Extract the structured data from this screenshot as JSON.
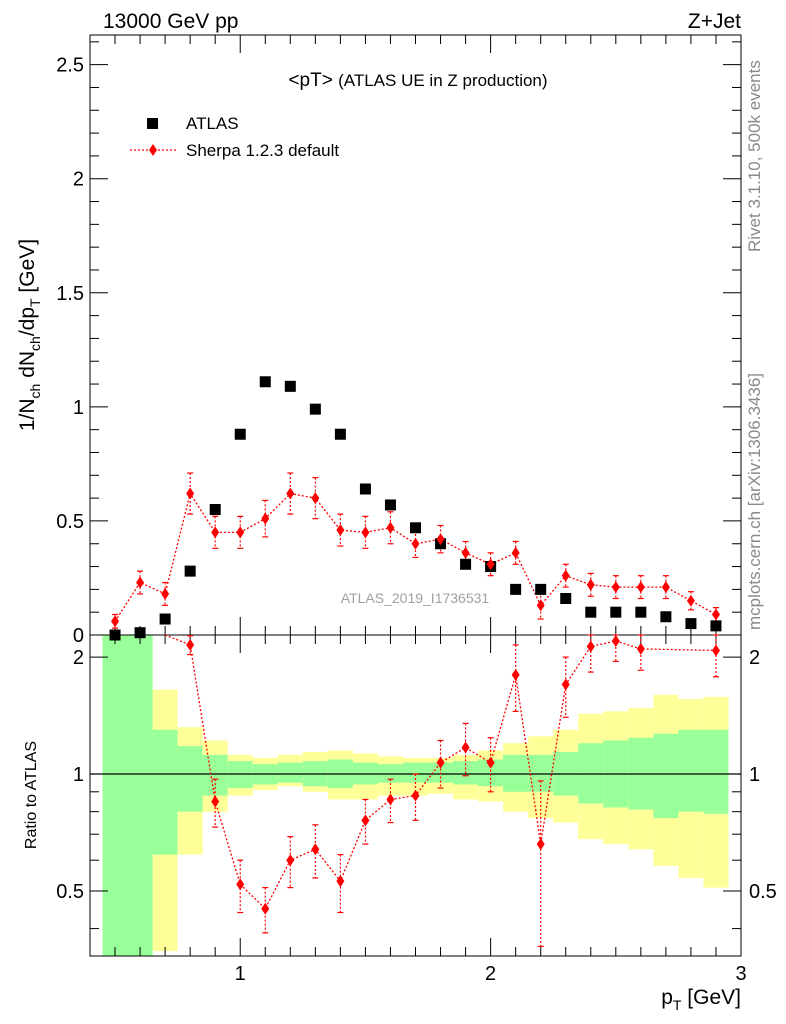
{
  "header": {
    "energy_label": "13000 GeV pp",
    "process_label": "Z+Jet",
    "plot_title_main": "<pT>",
    "plot_title_sub": "(ATLAS UE in Z production)",
    "analysis_id": "ATLAS_2019_I1736531"
  },
  "side": {
    "rivet_label": "Rivet 3.1.10,  500k events",
    "source_label": "mcplots.cern.ch [arXiv:1306.3436]"
  },
  "legend": {
    "data_label": "ATLAS",
    "mc_label": "Sherpa 1.2.3 default"
  },
  "colors": {
    "data": "#000000",
    "mc": "#ff0000",
    "band_inner": "#99ff99",
    "band_outer": "#ffff99"
  },
  "chart_data": [
    {
      "type": "scatter",
      "panel": "main",
      "ylabel_parts": [
        "1/N",
        "ch",
        " dN",
        "ch",
        "/dp",
        "T",
        " [GeV]"
      ],
      "xlim": [
        0.4,
        3.0
      ],
      "ylim": [
        0,
        2.63
      ],
      "yticks": [
        0,
        0.5,
        1,
        1.5,
        2,
        2.5
      ],
      "ytick_labels": [
        "0",
        "0.5",
        "1",
        "1.5",
        "2",
        "2.5"
      ],
      "x": [
        0.5,
        0.6,
        0.7,
        0.8,
        0.9,
        1.0,
        1.1,
        1.2,
        1.3,
        1.4,
        1.5,
        1.6,
        1.7,
        1.8,
        1.9,
        2.0,
        2.1,
        2.2,
        2.3,
        2.4,
        2.5,
        2.6,
        2.7,
        2.8,
        2.9
      ],
      "series": [
        {
          "name": "ATLAS",
          "marker": "square",
          "values": [
            0.0,
            0.01,
            0.07,
            0.28,
            0.55,
            0.88,
            1.11,
            1.09,
            0.99,
            0.88,
            0.64,
            0.57,
            0.47,
            0.4,
            0.31,
            0.3,
            0.2,
            0.2,
            0.16,
            0.1,
            0.1,
            0.1,
            0.08,
            0.05,
            0.04
          ]
        },
        {
          "name": "Sherpa 1.2.3 default",
          "marker": "diamond",
          "values": [
            0.06,
            0.23,
            0.18,
            0.62,
            0.45,
            0.45,
            0.51,
            0.62,
            0.6,
            0.46,
            0.45,
            0.47,
            0.4,
            0.42,
            0.36,
            0.31,
            0.36,
            0.13,
            0.26,
            0.22,
            0.21,
            0.21,
            0.21,
            0.15,
            0.09
          ],
          "errors": [
            0.03,
            0.05,
            0.05,
            0.09,
            0.07,
            0.07,
            0.08,
            0.09,
            0.09,
            0.07,
            0.07,
            0.07,
            0.06,
            0.06,
            0.05,
            0.05,
            0.05,
            0.06,
            0.05,
            0.05,
            0.05,
            0.05,
            0.05,
            0.04,
            0.03
          ]
        }
      ]
    },
    {
      "type": "scatter",
      "panel": "ratio",
      "ylabel": "Ratio to ATLAS",
      "xlabel_parts": [
        "p",
        "T",
        " [GeV]"
      ],
      "xlim": [
        0.4,
        3.0
      ],
      "ylim": [
        0.34,
        2.28
      ],
      "yticks": [
        0.5,
        1,
        2
      ],
      "ytick_labels": [
        "0.5",
        "1",
        "2"
      ],
      "xticks": [
        1,
        2,
        3
      ],
      "xtick_labels": [
        "1",
        "2",
        "3"
      ],
      "reference_line": 1,
      "bands": {
        "edges": [
          0.45,
          0.55,
          0.65,
          0.75,
          0.85,
          0.95,
          1.05,
          1.15,
          1.25,
          1.35,
          1.45,
          1.55,
          1.65,
          1.75,
          1.85,
          1.95,
          2.05,
          2.15,
          2.25,
          2.35,
          2.45,
          2.55,
          2.65,
          2.75,
          2.85,
          2.95
        ],
        "outer_low": [
          0.3,
          0.3,
          0.35,
          0.62,
          0.8,
          0.88,
          0.91,
          0.93,
          0.9,
          0.86,
          0.86,
          0.88,
          0.88,
          0.89,
          0.86,
          0.85,
          0.8,
          0.77,
          0.75,
          0.68,
          0.66,
          0.64,
          0.58,
          0.54,
          0.51
        ],
        "green_low": [
          0.3,
          0.3,
          0.62,
          0.8,
          0.88,
          0.92,
          0.94,
          0.95,
          0.93,
          0.92,
          0.94,
          0.95,
          0.95,
          0.95,
          0.94,
          0.93,
          0.9,
          0.9,
          0.88,
          0.84,
          0.82,
          0.81,
          0.77,
          0.8,
          0.79
        ],
        "green_high": [
          2.3,
          2.3,
          1.3,
          1.18,
          1.12,
          1.08,
          1.06,
          1.07,
          1.08,
          1.09,
          1.07,
          1.06,
          1.07,
          1.07,
          1.08,
          1.09,
          1.12,
          1.12,
          1.14,
          1.2,
          1.22,
          1.24,
          1.27,
          1.3,
          1.3
        ],
        "outer_high": [
          2.3,
          2.3,
          1.65,
          1.32,
          1.22,
          1.12,
          1.1,
          1.12,
          1.14,
          1.15,
          1.13,
          1.11,
          1.1,
          1.1,
          1.12,
          1.15,
          1.2,
          1.25,
          1.3,
          1.43,
          1.45,
          1.48,
          1.6,
          1.56,
          1.58
        ]
      },
      "series": [
        {
          "name": "Sherpa 1.2.3 default",
          "marker": "diamond",
          "x": [
            0.8,
            0.9,
            1.0,
            1.1,
            1.2,
            1.3,
            1.4,
            1.5,
            1.6,
            1.7,
            1.8,
            1.9,
            2.0,
            2.1,
            2.2,
            2.3,
            2.4,
            2.5,
            2.6,
            2.9
          ],
          "values": [
            2.15,
            0.85,
            0.52,
            0.45,
            0.6,
            0.64,
            0.53,
            0.76,
            0.86,
            0.88,
            1.07,
            1.17,
            1.07,
            1.8,
            0.66,
            1.7,
            2.13,
            2.2,
            2.1,
            2.08
          ],
          "errors": [
            0.12,
            0.12,
            0.08,
            0.06,
            0.09,
            0.1,
            0.09,
            0.1,
            0.11,
            0.12,
            0.15,
            0.18,
            0.17,
            0.35,
            0.3,
            0.3,
            0.3,
            0.25,
            0.25,
            0.3
          ]
        }
      ]
    }
  ]
}
